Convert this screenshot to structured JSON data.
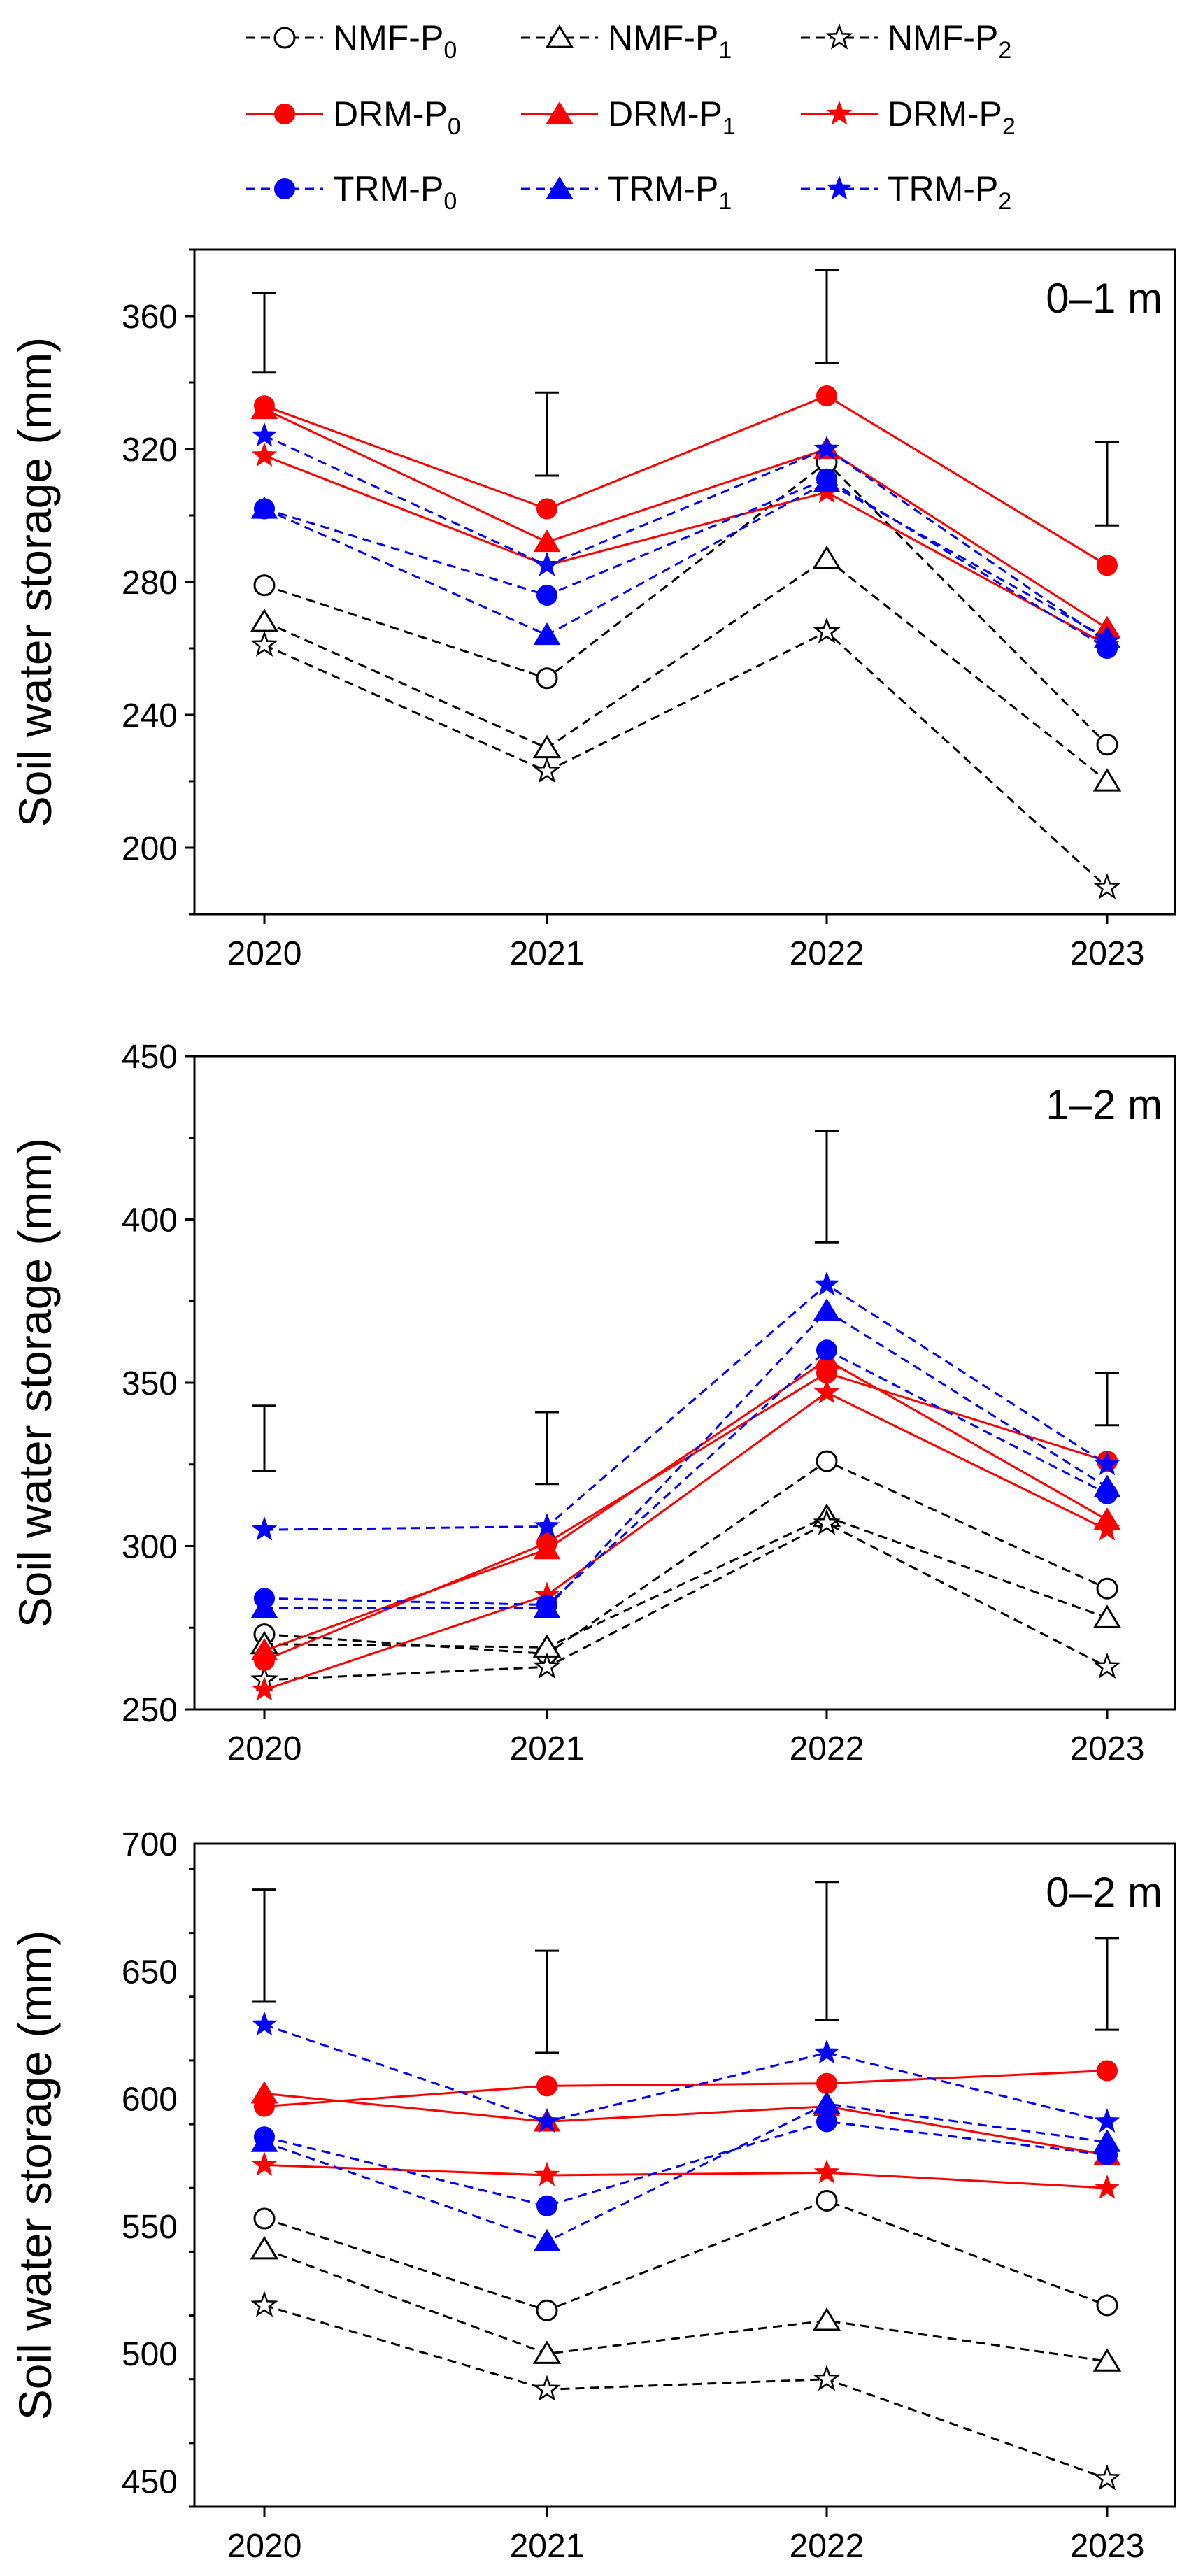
{
  "figure": {
    "ylabel": "Soil water storage (mm)",
    "colors": {
      "NMF": "#000000",
      "DRM": "#ff0000",
      "TRM": "#0000ff",
      "error_bar": "#000000"
    }
  },
  "legend": {
    "entries": [
      {
        "key": "NMF-P0",
        "label_base": "NMF-P",
        "label_sub": "0",
        "color": "#000000",
        "marker": "circle",
        "filled": false,
        "dash": true
      },
      {
        "key": "NMF-P1",
        "label_base": "NMF-P",
        "label_sub": "1",
        "color": "#000000",
        "marker": "triangle",
        "filled": false,
        "dash": true
      },
      {
        "key": "NMF-P2",
        "label_base": "NMF-P",
        "label_sub": "2",
        "color": "#000000",
        "marker": "star",
        "filled": false,
        "dash": true
      },
      {
        "key": "DRM-P0",
        "label_base": "DRM-P",
        "label_sub": "0",
        "color": "#ff0000",
        "marker": "circle",
        "filled": true,
        "dash": false
      },
      {
        "key": "DRM-P1",
        "label_base": "DRM-P",
        "label_sub": "1",
        "color": "#ff0000",
        "marker": "triangle",
        "filled": true,
        "dash": false
      },
      {
        "key": "DRM-P2",
        "label_base": "DRM-P",
        "label_sub": "2",
        "color": "#ff0000",
        "marker": "star",
        "filled": true,
        "dash": false
      },
      {
        "key": "TRM-P0",
        "label_base": "TRM-P",
        "label_sub": "0",
        "color": "#0000ff",
        "marker": "circle",
        "filled": true,
        "dash": true
      },
      {
        "key": "TRM-P1",
        "label_base": "TRM-P",
        "label_sub": "1",
        "color": "#0000ff",
        "marker": "triangle",
        "filled": true,
        "dash": true
      },
      {
        "key": "TRM-P2",
        "label_base": "TRM-P",
        "label_sub": "2",
        "color": "#0000ff",
        "marker": "star",
        "filled": true,
        "dash": true
      }
    ]
  },
  "chart_data": [
    {
      "type": "line",
      "depth_label": "0–1 m",
      "ylabel": "Soil water storage (mm)",
      "x": [
        "2020",
        "2021",
        "2022",
        "2023"
      ],
      "ylim": [
        180,
        380
      ],
      "yticks": [
        200,
        240,
        280,
        320,
        360
      ],
      "error_bars": [
        {
          "bottom": 343,
          "top": 367
        },
        {
          "bottom": 312,
          "top": 337
        },
        {
          "bottom": 346,
          "top": 374
        },
        {
          "bottom": 297,
          "top": 322
        }
      ],
      "series": [
        {
          "name": "NMF-P0",
          "values": [
            279,
            251,
            316,
            231
          ]
        },
        {
          "name": "NMF-P1",
          "values": [
            268,
            230,
            287,
            220
          ]
        },
        {
          "name": "NMF-P2",
          "values": [
            261,
            223,
            265,
            188
          ]
        },
        {
          "name": "DRM-P0",
          "values": [
            333,
            302,
            336,
            285
          ]
        },
        {
          "name": "DRM-P1",
          "values": [
            332,
            292,
            320,
            266
          ]
        },
        {
          "name": "DRM-P2",
          "values": [
            318,
            285,
            307,
            261
          ]
        },
        {
          "name": "TRM-P0",
          "values": [
            302,
            276,
            311,
            260
          ]
        },
        {
          "name": "TRM-P1",
          "values": [
            302,
            264,
            310,
            263
          ]
        },
        {
          "name": "TRM-P2",
          "values": [
            324,
            285,
            320,
            262
          ]
        }
      ]
    },
    {
      "type": "line",
      "depth_label": "1–2 m",
      "ylabel": "Soil water storage (mm)",
      "x": [
        "2020",
        "2021",
        "2022",
        "2023"
      ],
      "ylim": [
        250,
        450
      ],
      "yticks": [
        250,
        300,
        350,
        400,
        450
      ],
      "error_bars": [
        {
          "bottom": 323,
          "top": 343
        },
        {
          "bottom": 319,
          "top": 341
        },
        {
          "bottom": 393,
          "top": 427
        },
        {
          "bottom": 337,
          "top": 353
        }
      ],
      "series": [
        {
          "name": "NMF-P0",
          "values": [
            273,
            267,
            326,
            287
          ]
        },
        {
          "name": "NMF-P1",
          "values": [
            270,
            269,
            309,
            278
          ]
        },
        {
          "name": "NMF-P2",
          "values": [
            259,
            263,
            307,
            263
          ]
        },
        {
          "name": "DRM-P0",
          "values": [
            265,
            301,
            353,
            326
          ]
        },
        {
          "name": "DRM-P1",
          "values": [
            268,
            299,
            357,
            308
          ]
        },
        {
          "name": "DRM-P2",
          "values": [
            256,
            285,
            347,
            305
          ]
        },
        {
          "name": "TRM-P0",
          "values": [
            284,
            282,
            360,
            316
          ]
        },
        {
          "name": "TRM-P1",
          "values": [
            281,
            281,
            372,
            318
          ]
        },
        {
          "name": "TRM-P2",
          "values": [
            305,
            306,
            380,
            325
          ]
        }
      ]
    },
    {
      "type": "line",
      "depth_label": "0–2 m",
      "ylabel": "Soil water storage (mm)",
      "x": [
        "2020",
        "2021",
        "2022",
        "2023"
      ],
      "ylim": [
        440,
        700
      ],
      "yticks": [
        450,
        500,
        550,
        600,
        650,
        700
      ],
      "error_bars": [
        {
          "bottom": 638,
          "top": 682
        },
        {
          "bottom": 618,
          "top": 658
        },
        {
          "bottom": 631,
          "top": 685
        },
        {
          "bottom": 627,
          "top": 663
        }
      ],
      "series": [
        {
          "name": "NMF-P0",
          "values": [
            553,
            517,
            560,
            519
          ]
        },
        {
          "name": "NMF-P1",
          "values": [
            541,
            500,
            513,
            497
          ]
        },
        {
          "name": "NMF-P2",
          "values": [
            519,
            486,
            490,
            451
          ]
        },
        {
          "name": "DRM-P0",
          "values": [
            597,
            605,
            606,
            611
          ]
        },
        {
          "name": "DRM-P1",
          "values": [
            602,
            591,
            597,
            578
          ]
        },
        {
          "name": "DRM-P2",
          "values": [
            574,
            570,
            571,
            565
          ]
        },
        {
          "name": "TRM-P0",
          "values": [
            585,
            558,
            591,
            578
          ]
        },
        {
          "name": "TRM-P1",
          "values": [
            583,
            544,
            598,
            583
          ]
        },
        {
          "name": "TRM-P2",
          "values": [
            629,
            591,
            618,
            591
          ]
        }
      ]
    }
  ]
}
